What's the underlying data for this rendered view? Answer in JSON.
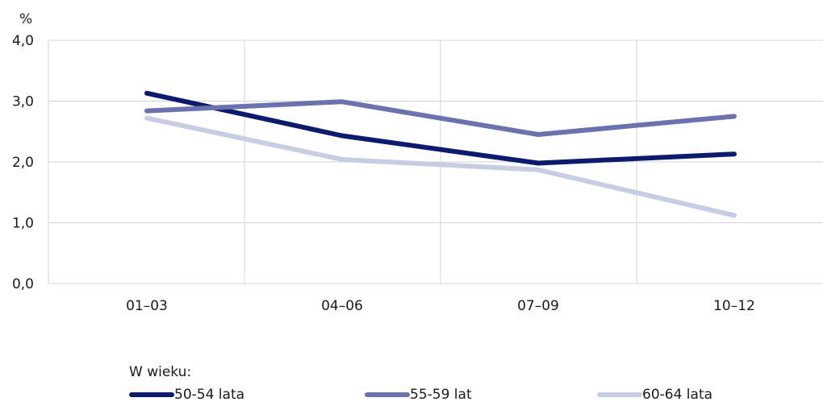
{
  "chart_data": {
    "type": "line",
    "categories": [
      "01–03",
      "04–06",
      "07–09",
      "10–12"
    ],
    "unit_label": "%",
    "ylim": [
      0,
      4
    ],
    "yticks": [
      "0,0",
      "1,0",
      "2,0",
      "3,0",
      "4,0"
    ],
    "grid": true,
    "legend_title": "W wieku:",
    "legend_position": "bottom",
    "series": [
      {
        "name": "50-54 lata",
        "color": "#0d1b6e",
        "values": [
          3.13,
          2.43,
          1.98,
          2.13
        ]
      },
      {
        "name": "55-59 lat",
        "color": "#6b72ad",
        "values": [
          2.84,
          2.99,
          2.45,
          2.75
        ]
      },
      {
        "name": "60-64 lata",
        "color": "#c9cde3",
        "values": [
          2.72,
          2.04,
          1.87,
          1.12
        ]
      }
    ]
  }
}
